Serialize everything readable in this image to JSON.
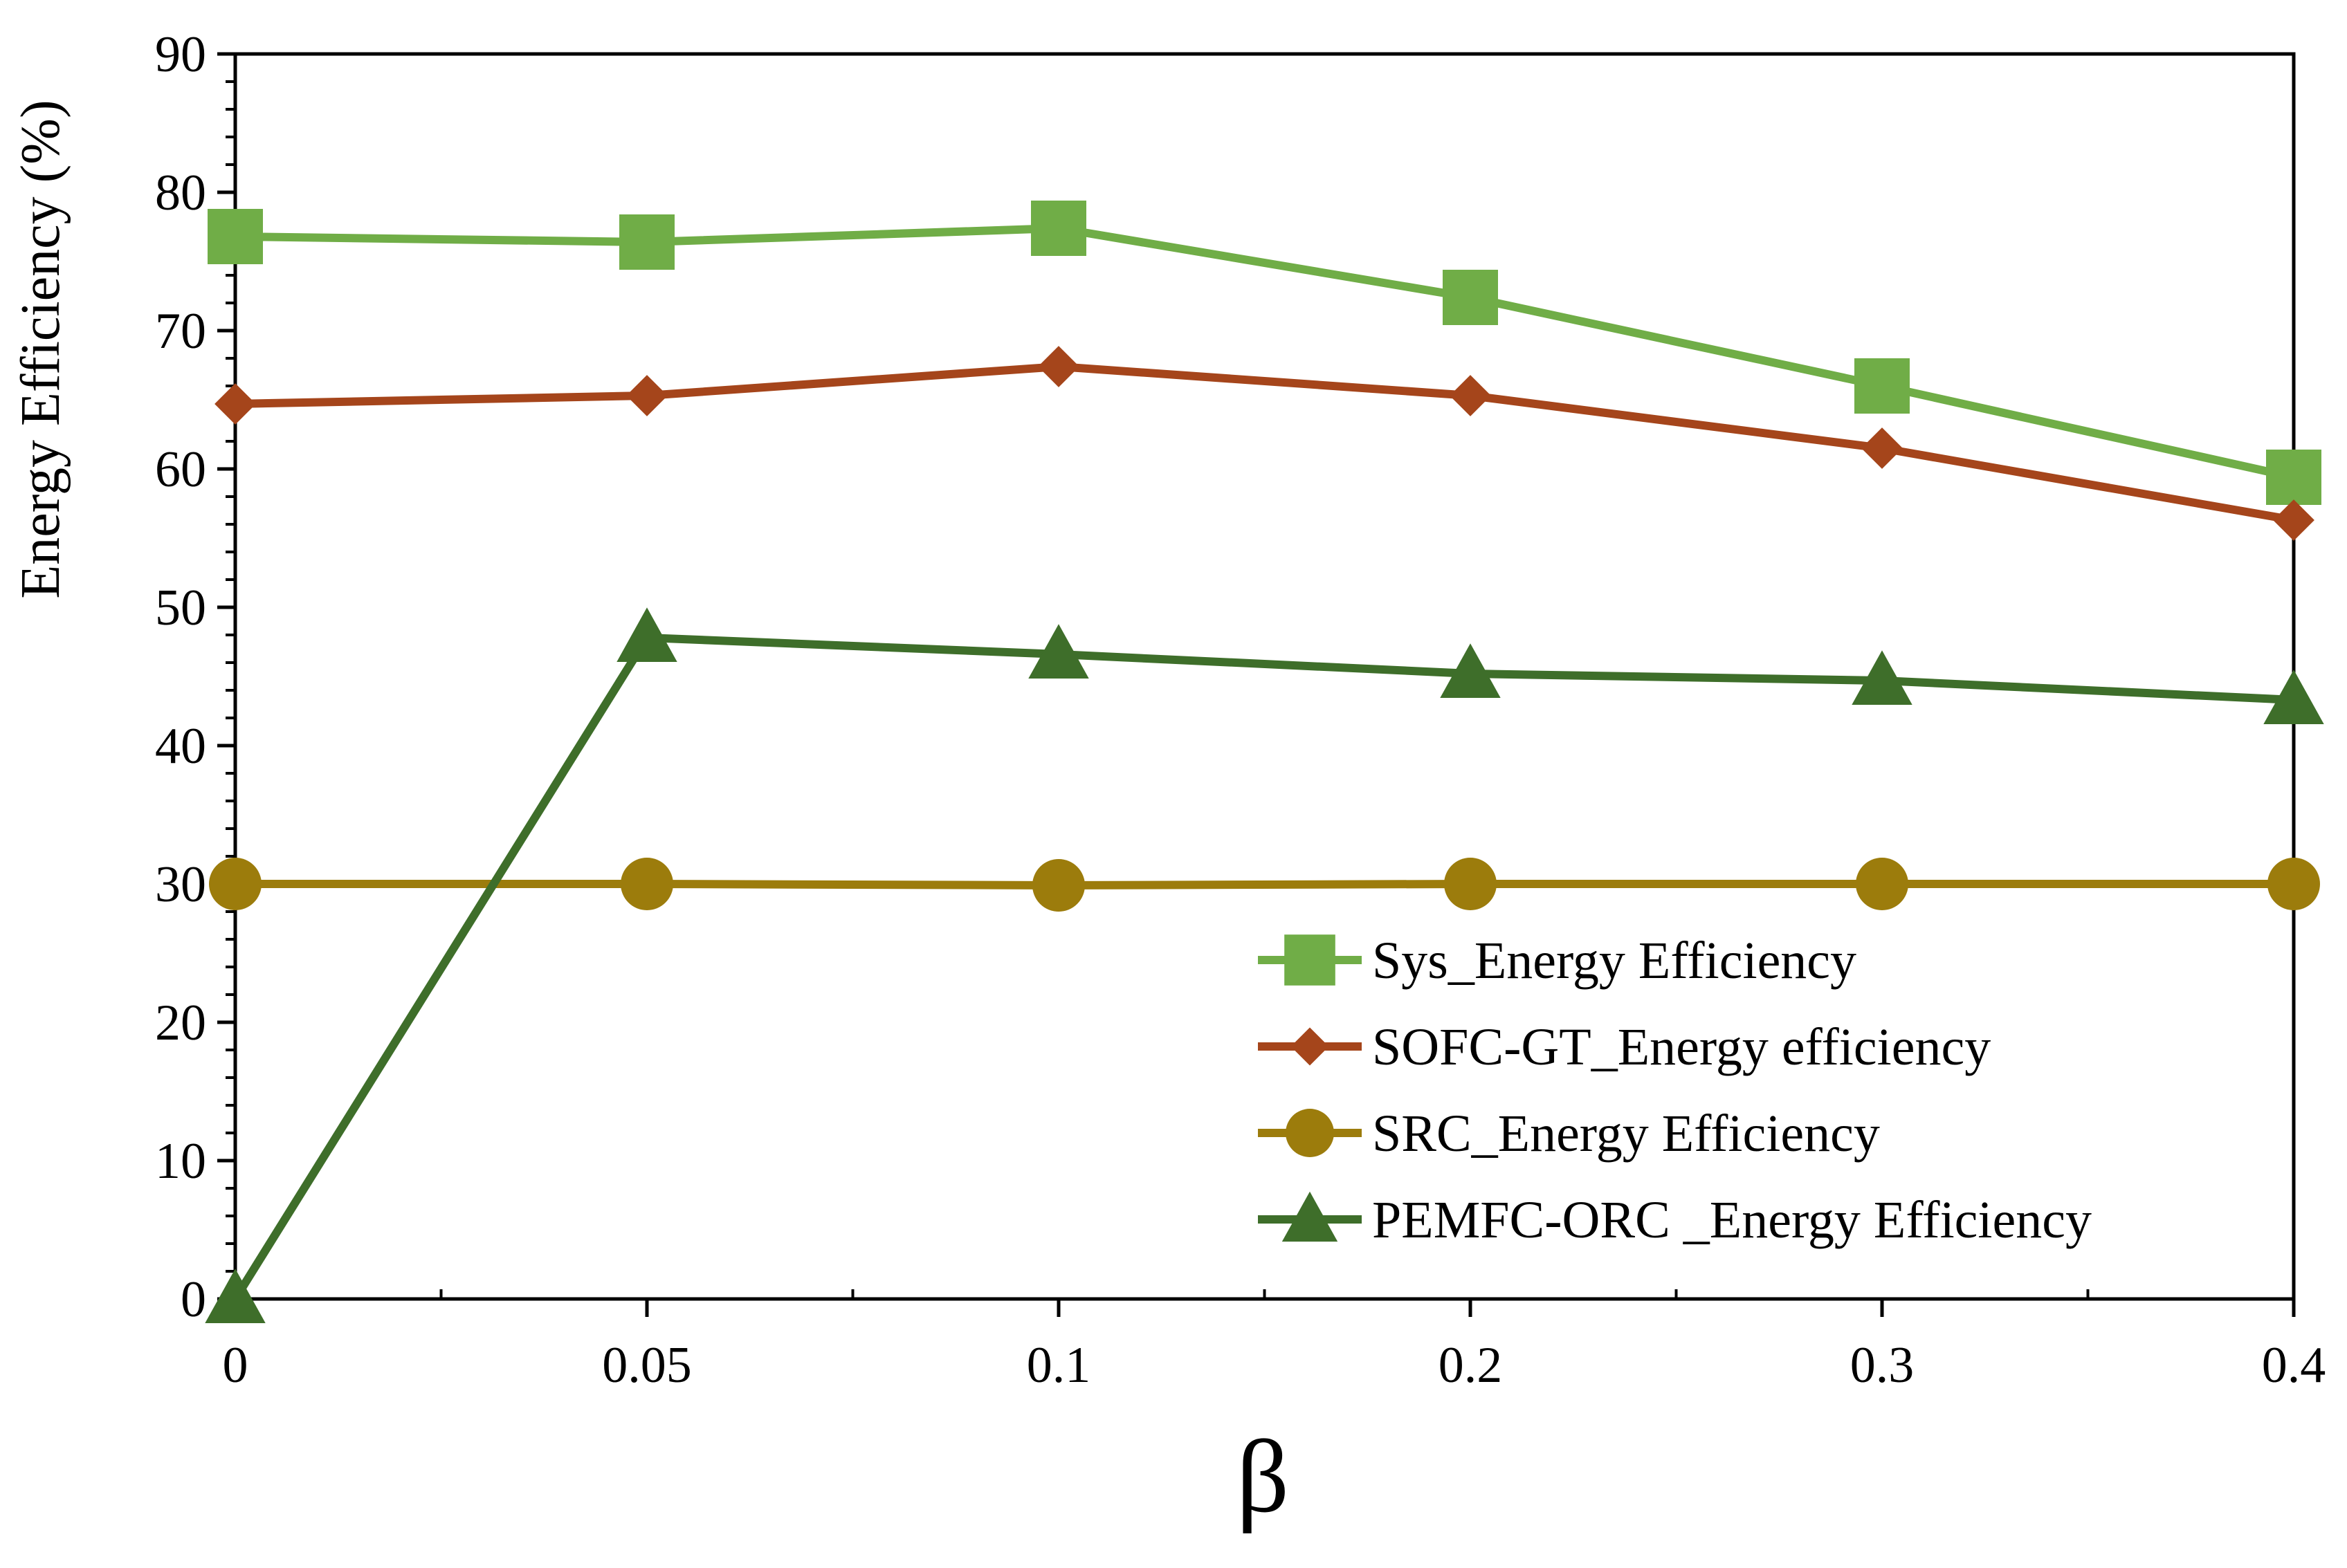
{
  "chart_data": {
    "type": "line",
    "title": "",
    "xlabel": "β",
    "ylabel": "Energy Efficiency (%)",
    "categories": [
      "0",
      "0.05",
      "0.1",
      "0.2",
      "0.3",
      "0.4"
    ],
    "ylim": [
      0,
      90
    ],
    "yticks": [
      0,
      10,
      20,
      30,
      40,
      50,
      60,
      70,
      80,
      90
    ],
    "grid": false,
    "legend_position": "bottom-right",
    "series": [
      {
        "name": "Sys_Energy Efficiency",
        "color": "#70AD47",
        "marker": "square",
        "values": [
          76.8,
          76.4,
          77.4,
          72.4,
          66.0,
          59.4
        ]
      },
      {
        "name": "SOFC-GT_Energy efficiency",
        "color": "#A5451B",
        "marker": "diamond",
        "values": [
          64.7,
          65.3,
          67.4,
          65.3,
          61.5,
          56.3
        ]
      },
      {
        "name": "SRC_Energy Efficiency",
        "color": "#9C7C0C",
        "marker": "circle",
        "values": [
          30.0,
          30.0,
          29.9,
          30.0,
          30.0,
          30.0
        ]
      },
      {
        "name": "PEMFC-ORC _Energy Efficiency",
        "color": "#3E6E2A",
        "marker": "triangle",
        "values": [
          0.0,
          47.8,
          46.6,
          45.2,
          44.7,
          43.3
        ]
      }
    ]
  }
}
